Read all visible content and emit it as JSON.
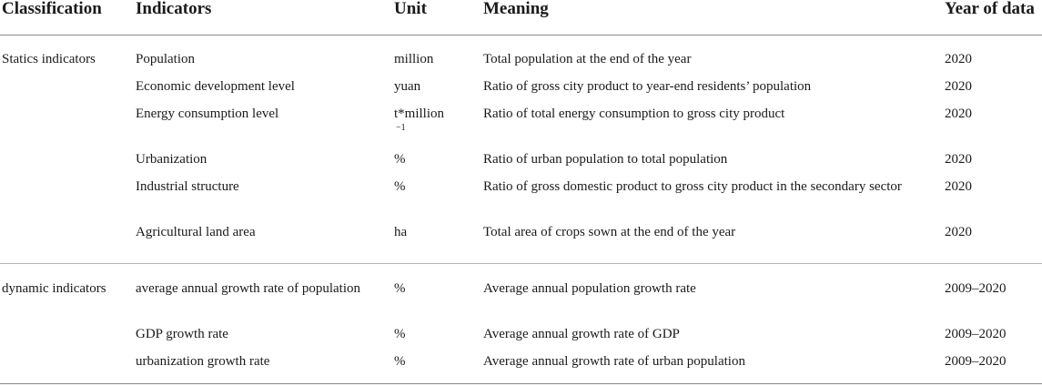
{
  "headers": {
    "classification": "Classification",
    "indicators": "Indicators",
    "unit": "Unit",
    "meaning": "Meaning",
    "year": "Year of data"
  },
  "groups": [
    {
      "classification": "Statics indicators",
      "rows": [
        {
          "indicator": "Population",
          "unit": "million",
          "meaning": "Total population at the end of the year",
          "year": "2020"
        },
        {
          "indicator": "Economic development level",
          "unit": "yuan",
          "meaning": "Ratio of gross city product to year-end residents’ population",
          "year": "2020"
        },
        {
          "indicator": "Energy consumption level",
          "unit": "t*million",
          "unit_sup": "−1",
          "meaning": "Ratio of total energy consumption to gross city product",
          "year": "2020"
        },
        {
          "indicator": "Urbanization",
          "unit": "%",
          "meaning": "Ratio of urban population to total population",
          "year": "2020"
        },
        {
          "indicator": "Industrial structure",
          "unit": "%",
          "meaning": "Ratio of gross domestic product to gross city product in the secondary sector",
          "year": "2020"
        },
        {
          "indicator": "Agricultural land area",
          "unit": "ha",
          "meaning": "Total area of crops sown at the end of the year",
          "year": "2020"
        }
      ]
    },
    {
      "classification": "dynamic indicators",
      "rows": [
        {
          "indicator": "average annual growth rate of population",
          "unit": "%",
          "meaning": "Average annual population growth rate",
          "year": "2009–2020"
        },
        {
          "indicator": "GDP growth rate",
          "unit": "%",
          "meaning": "Average annual growth rate of GDP",
          "year": "2009–2020"
        },
        {
          "indicator": "urbanization growth rate",
          "unit": "%",
          "meaning": "Average annual growth rate of urban population",
          "year": "2009–2020"
        }
      ]
    }
  ]
}
